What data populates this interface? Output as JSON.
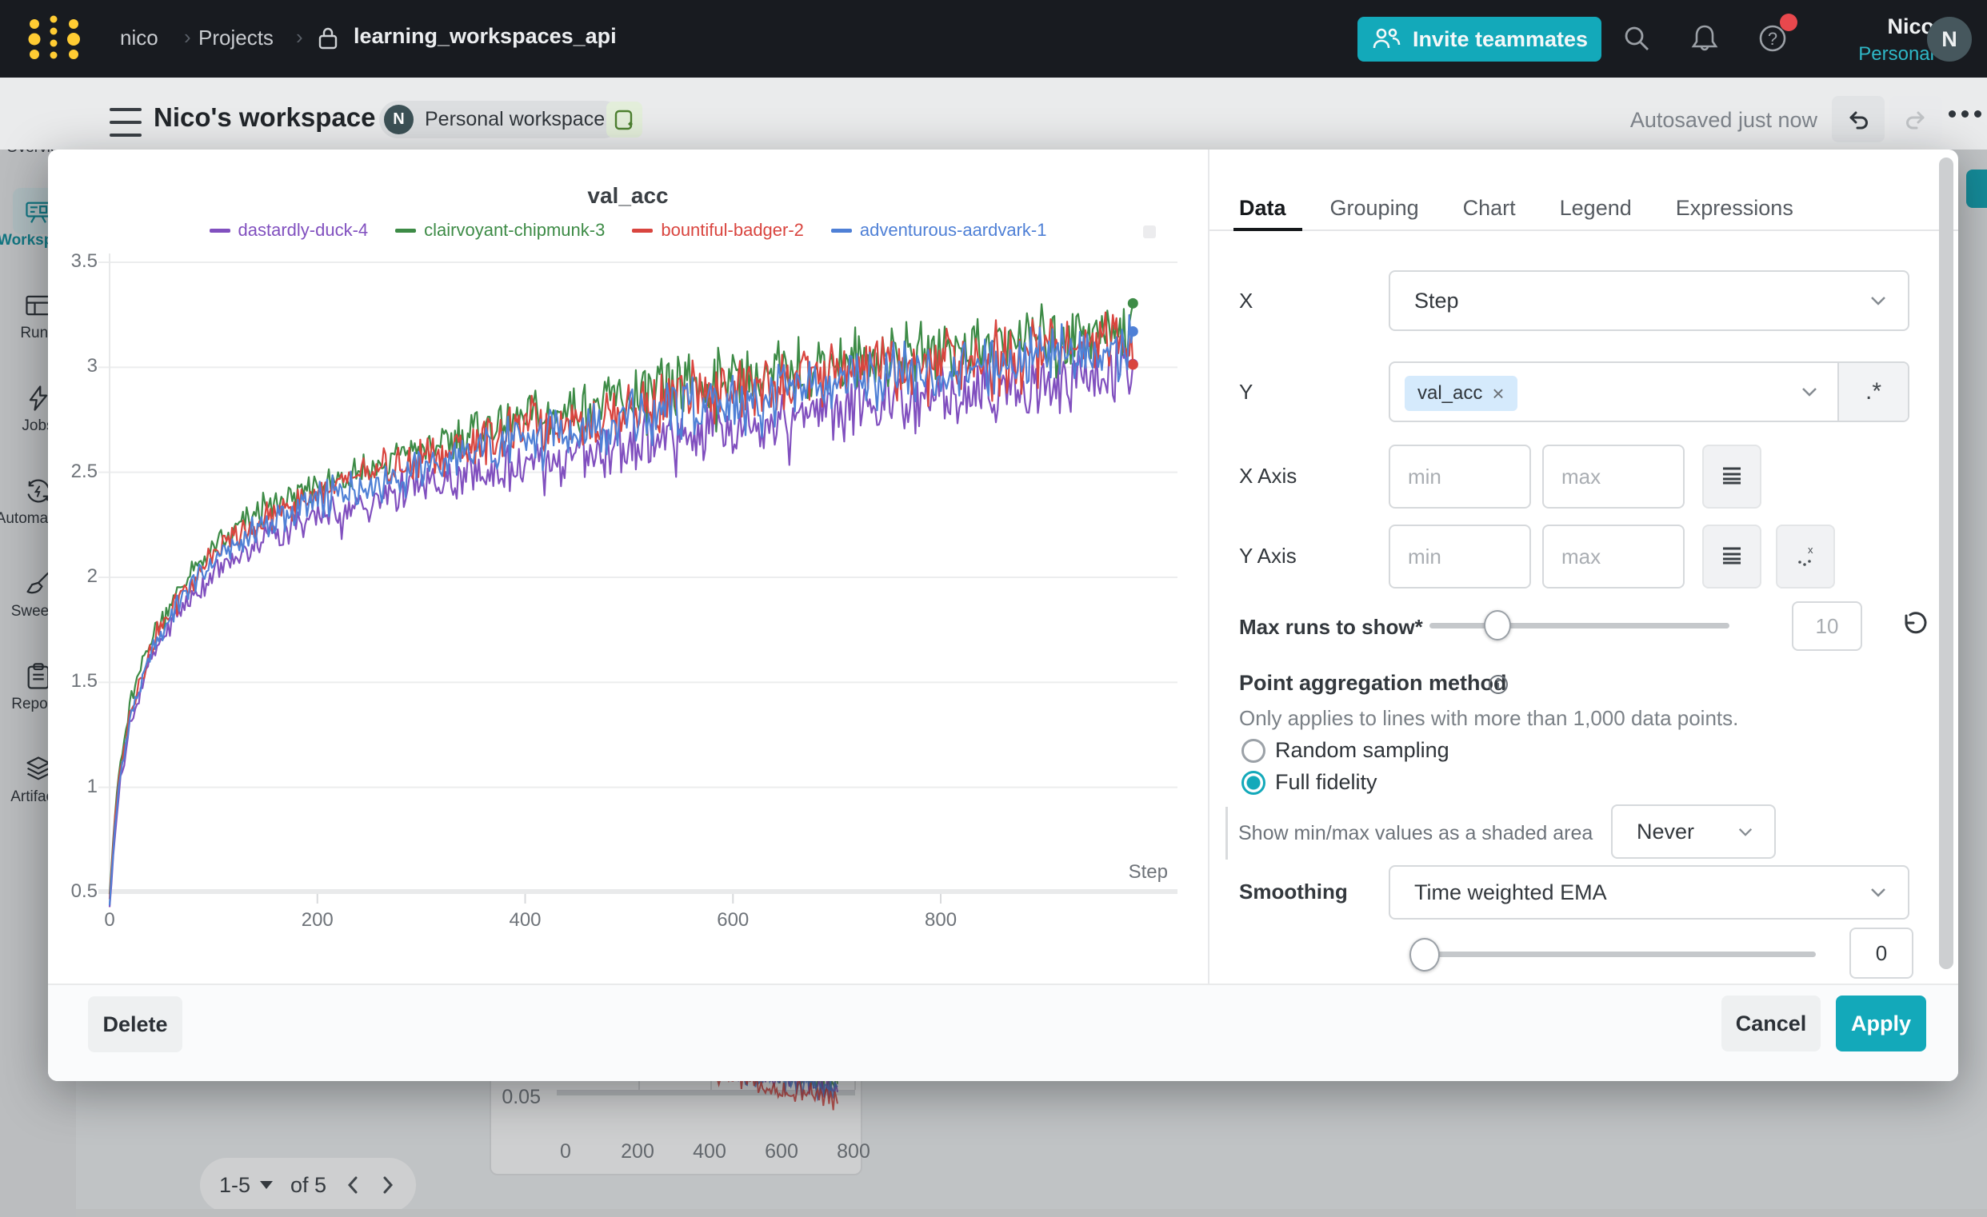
{
  "navbar": {
    "breadcrumb_user": "nico",
    "breadcrumb_section": "Projects",
    "project": "learning_workspaces_api",
    "invite_label": "Invite teammates",
    "help_glyph": "?",
    "user_name": "Nico",
    "user_scope": "Personal",
    "avatar_initial": "N"
  },
  "header": {
    "title": "Nico's workspace",
    "badge_initial": "N",
    "badge_label": "Personal workspace",
    "autosave_status": "Autosaved just now"
  },
  "sidebar": {
    "items": [
      {
        "label": "Overview"
      },
      {
        "label": "Workspace",
        "active": true
      },
      {
        "label": "Runs"
      },
      {
        "label": "Jobs"
      },
      {
        "label": "Automations"
      },
      {
        "label": "Sweeps"
      },
      {
        "label": "Reports"
      },
      {
        "label": "Artifacts"
      }
    ]
  },
  "panel": {
    "tabs": [
      "Data",
      "Grouping",
      "Chart",
      "Legend",
      "Expressions"
    ],
    "active_tab": "Data",
    "x_label": "X",
    "x_value": "Step",
    "y_label": "Y",
    "y_chip": "val_acc",
    "y_chip_remove": "×",
    "regex_button": ".*",
    "x_axis_label": "X Axis",
    "y_axis_label": "Y Axis",
    "min_placeholder": "min",
    "max_placeholder": "max",
    "max_runs_label": "Max runs to show*",
    "max_runs_value": "10",
    "aggregation_title": "Point aggregation method",
    "aggregation_note": "Only applies to lines with more than 1,000 data points.",
    "radio_random": "Random sampling",
    "radio_full": "Full fidelity",
    "selected_aggregation": "Full fidelity",
    "minmax_label": "Show min/max values as a shaded area",
    "minmax_value": "Never",
    "smoothing_label": "Smoothing",
    "smoothing_value": "Time weighted EMA",
    "smoothing_amount": "0"
  },
  "footer": {
    "delete_label": "Delete",
    "cancel_label": "Cancel",
    "apply_label": "Apply"
  },
  "background": {
    "pagination": {
      "range": "1-5",
      "of": "of 5"
    }
  },
  "colors": {
    "accent": "#13a9ba",
    "navbar_bg": "#181b20",
    "logo_yellow": "#ffcc33",
    "notification_red": "#e8484d"
  },
  "chart_data": [
    {
      "type": "line",
      "title": "val_acc",
      "xlabel": "Step",
      "x_ticks": [
        0,
        200,
        400,
        600,
        800
      ],
      "y_ticks": [
        0.5,
        1,
        1.5,
        2,
        2.5,
        3,
        3.5
      ],
      "xlim": [
        0,
        985
      ],
      "ylim": [
        0.45,
        3.5
      ],
      "grid": true,
      "legend_position": "top",
      "anchor_x": [
        0,
        5,
        10,
        20,
        40,
        70,
        100,
        150,
        200,
        300,
        400,
        500,
        600,
        700,
        800,
        900,
        985
      ],
      "anchor_y": [
        0.45,
        0.82,
        1.05,
        1.35,
        1.66,
        1.92,
        2.09,
        2.27,
        2.38,
        2.55,
        2.69,
        2.79,
        2.87,
        2.95,
        3.02,
        3.08,
        3.12
      ],
      "noise_base": 0.05,
      "noise_growth": 0.13,
      "series": [
        {
          "name": "dastardly-duck-4",
          "color": "#8150bf",
          "offset": -0.04,
          "drift": -0.11,
          "seed": 4
        },
        {
          "name": "clairvoyant-chipmunk-3",
          "color": "#3d8b46",
          "offset": 0.05,
          "drift": 0.02,
          "seed": 2
        },
        {
          "name": "bountiful-badger-2",
          "color": "#d9453f",
          "offset": 0.02,
          "drift": 0.0,
          "seed": 3
        },
        {
          "name": "adventurous-aardvark-1",
          "color": "#4f80d6",
          "offset": -0.01,
          "drift": -0.02,
          "seed": 1
        }
      ]
    },
    {
      "type": "line",
      "title": "",
      "note": "partially visible loss-style chart behind the dialog",
      "y_tick_label": "0.05",
      "x_ticks": [
        0,
        200,
        400,
        600,
        800
      ],
      "approx_trend": {
        "start": 0.07,
        "end": 0.035
      },
      "series": [
        {
          "name": "clairvoyant-chipmunk-3",
          "color": "#3d8b46",
          "seed": 2,
          "shift": -4
        },
        {
          "name": "dastardly-duck-4",
          "color": "#8150bf",
          "seed": 4,
          "shift": 0
        },
        {
          "name": "adventurous-aardvark-1",
          "color": "#4f80d6",
          "seed": 1,
          "shift": 5
        },
        {
          "name": "bountiful-badger-2",
          "color": "#d9453f",
          "seed": 3,
          "shift": 15
        }
      ]
    }
  ]
}
